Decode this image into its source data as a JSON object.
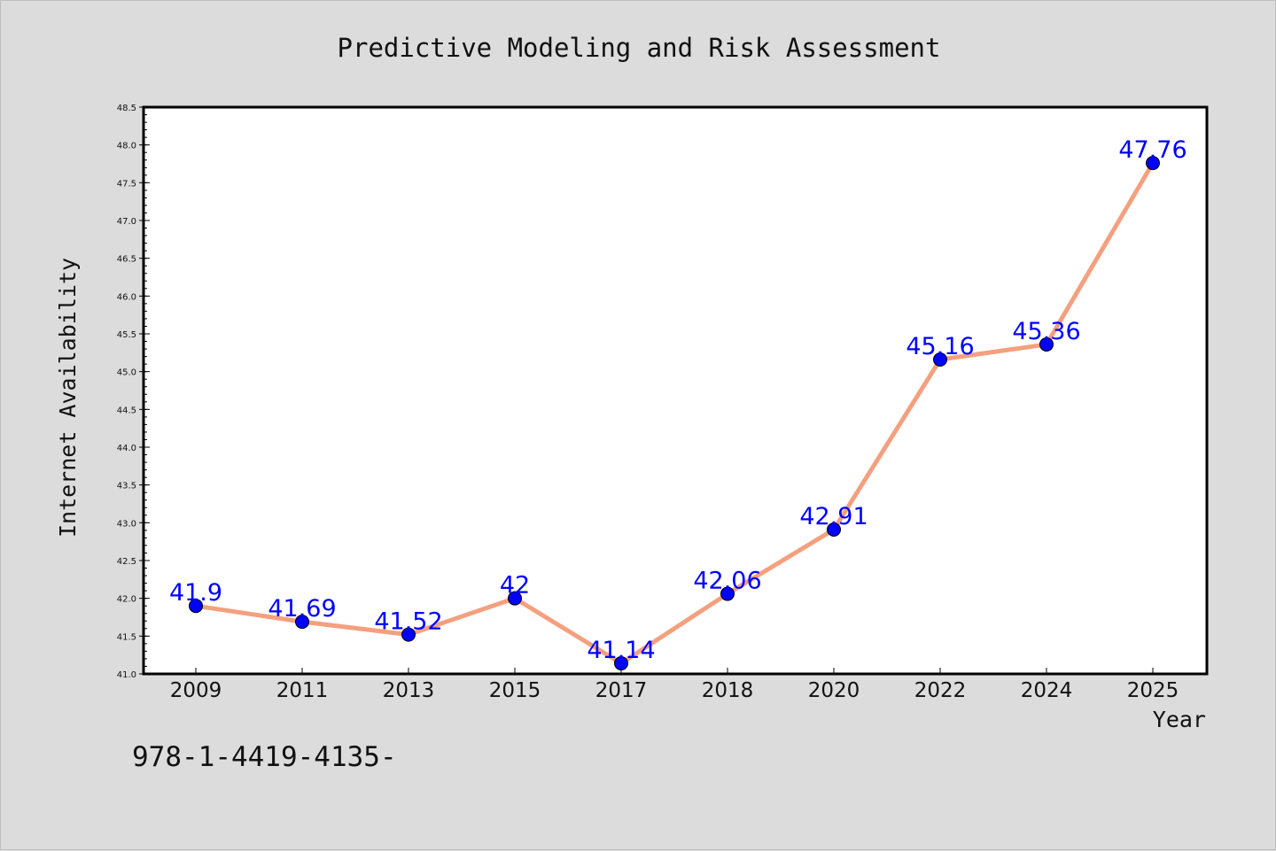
{
  "chart_data": {
    "type": "line",
    "title": "Predictive Modeling and Risk Assessment",
    "xlabel": "Year",
    "ylabel": "Internet Availability",
    "categories": [
      "2009",
      "2011",
      "2013",
      "2015",
      "2017",
      "2018",
      "2020",
      "2022",
      "2024",
      "2025"
    ],
    "series": [
      {
        "values": [
          41.9,
          41.69,
          41.52,
          42,
          41.14,
          42.06,
          42.91,
          45.16,
          45.36,
          47.76
        ],
        "data_labels": [
          "41.9",
          "41.69",
          "41.52",
          "42",
          "41.14",
          "42.06",
          "42.91",
          "45.16",
          "45.36",
          "47.76"
        ]
      }
    ],
    "ylim": [
      41.0,
      48.5
    ],
    "yticks": [
      "41.0",
      "41.5",
      "42.0",
      "42.5",
      "43.0",
      "43.5",
      "44.0",
      "44.5",
      "45.0",
      "45.5",
      "46.0",
      "46.5",
      "47.0",
      "47.5",
      "48.0",
      "48.5"
    ],
    "grid": false,
    "colors": {
      "line": "#f4a07f",
      "marker": "#0000ff",
      "label": "#0000ff",
      "background": "#dcdcdc",
      "plot_background": "#ffffff"
    }
  },
  "footer": {
    "text": "978-1-4419-4135-"
  }
}
